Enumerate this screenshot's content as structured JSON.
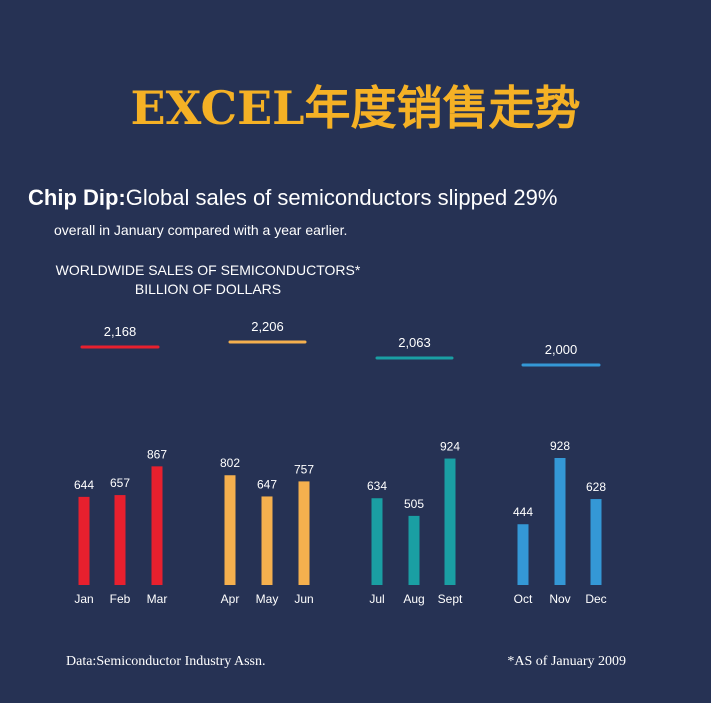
{
  "page": {
    "title": "EXCEL年度销售走势",
    "headline_bold": "Chip Dip:",
    "headline_text": "Global sales of semiconductors slipped 29%",
    "subline": "overall in January compared with a year earlier.",
    "axis_title_line1": "WORLDWIDE SALES OF SEMICONDUCTORS*",
    "axis_title_line2": "BILLION OF DOLLARS",
    "source": "Data:Semiconductor Industry Assn.",
    "note": "*AS of January 2009"
  },
  "colors": {
    "background": "#263254",
    "title": "#f5b125",
    "q1": "#e8202e",
    "q2": "#f5b04e",
    "q3": "#1a9fa3",
    "q4": "#3498d6"
  },
  "chart_data": {
    "type": "bar",
    "categories": [
      "Jan",
      "Feb",
      "Mar",
      "Apr",
      "May",
      "Jun",
      "Jul",
      "Aug",
      "Sept",
      "Oct",
      "Nov",
      "Dec"
    ],
    "values": [
      644,
      657,
      867,
      802,
      647,
      757,
      634,
      505,
      924,
      444,
      928,
      628
    ],
    "quarter_totals": [
      {
        "label": "2,168",
        "value": 2168
      },
      {
        "label": "2,206",
        "value": 2206
      },
      {
        "label": "2,063",
        "value": 2063
      },
      {
        "label": "2,000",
        "value": 2000
      }
    ],
    "colors_by_quarter": [
      "#e8202e",
      "#f5b04e",
      "#1a9fa3",
      "#3498d6"
    ]
  }
}
